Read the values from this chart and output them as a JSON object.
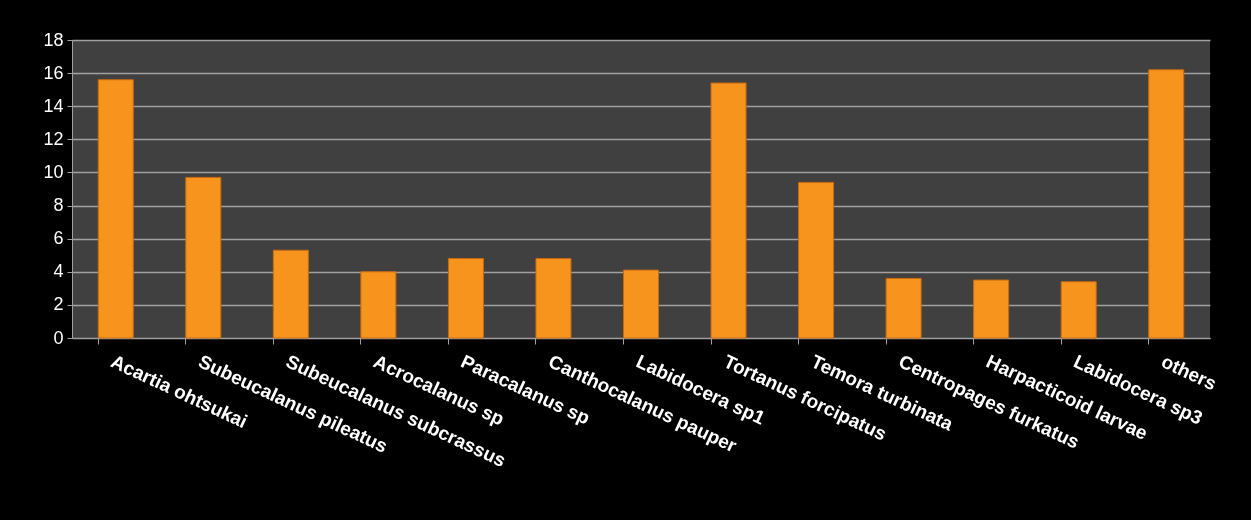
{
  "chart_data": {
    "type": "bar",
    "categories": [
      "Acartia ohtsukai",
      "Subeucalanus pileatus",
      "Subeucalanus subcrassus",
      "Acrocalanus sp",
      "Paracalanus  sp",
      "Canthocalanus pauper",
      "Labidocera sp1",
      "Tortanus forcipatus",
      "Temora turbinata",
      "Centropages furkatus",
      "Harpacticoid larvae",
      "Labidocera sp3",
      "others"
    ],
    "values": [
      15.6,
      9.7,
      5.3,
      4.0,
      4.8,
      4.8,
      4.1,
      15.4,
      9.4,
      3.6,
      3.5,
      3.4,
      16.2
    ],
    "color": "#f7941d",
    "ylim": [
      0,
      18
    ],
    "yticks": [
      0,
      2,
      4,
      6,
      8,
      10,
      12,
      14,
      16,
      18
    ],
    "grid": "y"
  }
}
